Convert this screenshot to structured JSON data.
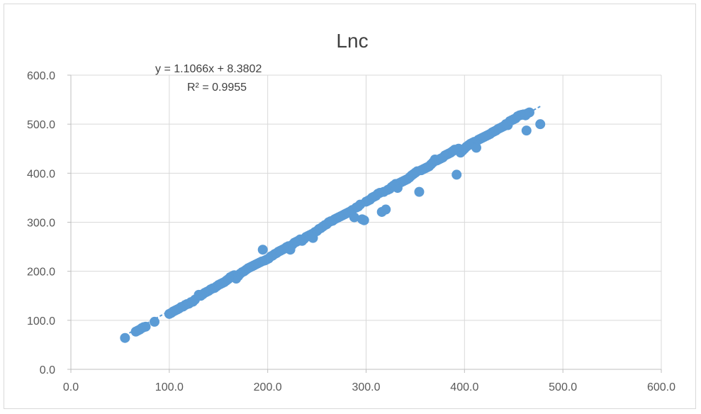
{
  "chart_data": {
    "type": "scatter",
    "title": "Lnc",
    "xlabel": "",
    "ylabel": "",
    "xlim": [
      0,
      600
    ],
    "ylim": [
      0,
      600
    ],
    "x_ticks": [
      "0.0",
      "100.0",
      "200.0",
      "300.0",
      "400.0",
      "500.0",
      "600.0"
    ],
    "y_ticks": [
      "0.0",
      "100.0",
      "200.0",
      "300.0",
      "400.0",
      "500.0",
      "600.0"
    ],
    "grid": "vertical-and-horizontal",
    "legend": "none",
    "marker_color": "#5b9bd5",
    "trendline": {
      "type": "linear",
      "slope": 1.1066,
      "intercept": 8.3802,
      "equation_label": "y = 1.1066x + 8.3802",
      "r2_label": "R² = 0.9955",
      "color": "#5b9bd5"
    },
    "points": [
      [
        55,
        64
      ],
      [
        66,
        77
      ],
      [
        68,
        79
      ],
      [
        70,
        81
      ],
      [
        72,
        84
      ],
      [
        74,
        86
      ],
      [
        76,
        87
      ],
      [
        85,
        97
      ],
      [
        100,
        113
      ],
      [
        102,
        115
      ],
      [
        104,
        118
      ],
      [
        106,
        120
      ],
      [
        108,
        122
      ],
      [
        110,
        124
      ],
      [
        112,
        127
      ],
      [
        114,
        128
      ],
      [
        116,
        131
      ],
      [
        118,
        133
      ],
      [
        120,
        134
      ],
      [
        122,
        137
      ],
      [
        124,
        138
      ],
      [
        126,
        142
      ],
      [
        130,
        152
      ],
      [
        132,
        150
      ],
      [
        134,
        153
      ],
      [
        136,
        156
      ],
      [
        138,
        158
      ],
      [
        140,
        160
      ],
      [
        142,
        163
      ],
      [
        144,
        165
      ],
      [
        146,
        166
      ],
      [
        148,
        169
      ],
      [
        150,
        172
      ],
      [
        152,
        174
      ],
      [
        154,
        176
      ],
      [
        156,
        178
      ],
      [
        158,
        181
      ],
      [
        160,
        184
      ],
      [
        162,
        188
      ],
      [
        164,
        190
      ],
      [
        166,
        192
      ],
      [
        168,
        185
      ],
      [
        170,
        190
      ],
      [
        172,
        195
      ],
      [
        174,
        198
      ],
      [
        176,
        200
      ],
      [
        178,
        203
      ],
      [
        180,
        206
      ],
      [
        182,
        208
      ],
      [
        184,
        210
      ],
      [
        186,
        212
      ],
      [
        188,
        214
      ],
      [
        190,
        216
      ],
      [
        192,
        218
      ],
      [
        194,
        220
      ],
      [
        195,
        244
      ],
      [
        197,
        222
      ],
      [
        199,
        224
      ],
      [
        201,
        226
      ],
      [
        203,
        230
      ],
      [
        205,
        232
      ],
      [
        207,
        235
      ],
      [
        209,
        237
      ],
      [
        211,
        240
      ],
      [
        213,
        242
      ],
      [
        215,
        244
      ],
      [
        217,
        246
      ],
      [
        219,
        249
      ],
      [
        221,
        251
      ],
      [
        223,
        244
      ],
      [
        225,
        254
      ],
      [
        227,
        258
      ],
      [
        229,
        260
      ],
      [
        231,
        262
      ],
      [
        233,
        265
      ],
      [
        235,
        262
      ],
      [
        237,
        266
      ],
      [
        239,
        270
      ],
      [
        241,
        272
      ],
      [
        243,
        274
      ],
      [
        245,
        276
      ],
      [
        246,
        268
      ],
      [
        248,
        280
      ],
      [
        250,
        282
      ],
      [
        252,
        286
      ],
      [
        254,
        288
      ],
      [
        256,
        291
      ],
      [
        258,
        294
      ],
      [
        260,
        296
      ],
      [
        262,
        300
      ],
      [
        264,
        302
      ],
      [
        266,
        303
      ],
      [
        268,
        306
      ],
      [
        270,
        308
      ],
      [
        272,
        310
      ],
      [
        274,
        312
      ],
      [
        276,
        314
      ],
      [
        278,
        316
      ],
      [
        280,
        318
      ],
      [
        282,
        320
      ],
      [
        284,
        322
      ],
      [
        286,
        325
      ],
      [
        288,
        310
      ],
      [
        290,
        330
      ],
      [
        292,
        332
      ],
      [
        294,
        336
      ],
      [
        296,
        306
      ],
      [
        298,
        304
      ],
      [
        300,
        342
      ],
      [
        302,
        344
      ],
      [
        304,
        346
      ],
      [
        306,
        350
      ],
      [
        308,
        352
      ],
      [
        310,
        354
      ],
      [
        312,
        358
      ],
      [
        314,
        360
      ],
      [
        316,
        321
      ],
      [
        318,
        362
      ],
      [
        320,
        326
      ],
      [
        322,
        366
      ],
      [
        324,
        368
      ],
      [
        326,
        372
      ],
      [
        328,
        375
      ],
      [
        330,
        378
      ],
      [
        332,
        370
      ],
      [
        334,
        380
      ],
      [
        336,
        382
      ],
      [
        338,
        384
      ],
      [
        340,
        386
      ],
      [
        342,
        388
      ],
      [
        344,
        391
      ],
      [
        346,
        395
      ],
      [
        348,
        398
      ],
      [
        350,
        401
      ],
      [
        352,
        404
      ],
      [
        354,
        362
      ],
      [
        356,
        406
      ],
      [
        358,
        408
      ],
      [
        360,
        410
      ],
      [
        362,
        412
      ],
      [
        364,
        414
      ],
      [
        366,
        418
      ],
      [
        368,
        422
      ],
      [
        370,
        428
      ],
      [
        372,
        426
      ],
      [
        374,
        428
      ],
      [
        376,
        430
      ],
      [
        378,
        432
      ],
      [
        380,
        436
      ],
      [
        382,
        438
      ],
      [
        384,
        440
      ],
      [
        386,
        442
      ],
      [
        388,
        445
      ],
      [
        390,
        448
      ],
      [
        392,
        397
      ],
      [
        394,
        450
      ],
      [
        396,
        442
      ],
      [
        398,
        446
      ],
      [
        400,
        450
      ],
      [
        402,
        454
      ],
      [
        404,
        457
      ],
      [
        406,
        460
      ],
      [
        408,
        462
      ],
      [
        410,
        464
      ],
      [
        412,
        452
      ],
      [
        414,
        468
      ],
      [
        416,
        470
      ],
      [
        418,
        472
      ],
      [
        420,
        474
      ],
      [
        422,
        476
      ],
      [
        424,
        478
      ],
      [
        426,
        480
      ],
      [
        428,
        483
      ],
      [
        430,
        485
      ],
      [
        432,
        487
      ],
      [
        434,
        490
      ],
      [
        436,
        492
      ],
      [
        438,
        494
      ],
      [
        440,
        496
      ],
      [
        442,
        500
      ],
      [
        444,
        498
      ],
      [
        446,
        506
      ],
      [
        448,
        508
      ],
      [
        450,
        510
      ],
      [
        452,
        512
      ],
      [
        454,
        516
      ],
      [
        456,
        518
      ],
      [
        458,
        519
      ],
      [
        460,
        520
      ],
      [
        462,
        518
      ],
      [
        463,
        487
      ],
      [
        464,
        522
      ],
      [
        466,
        524
      ],
      [
        477,
        500
      ]
    ]
  }
}
